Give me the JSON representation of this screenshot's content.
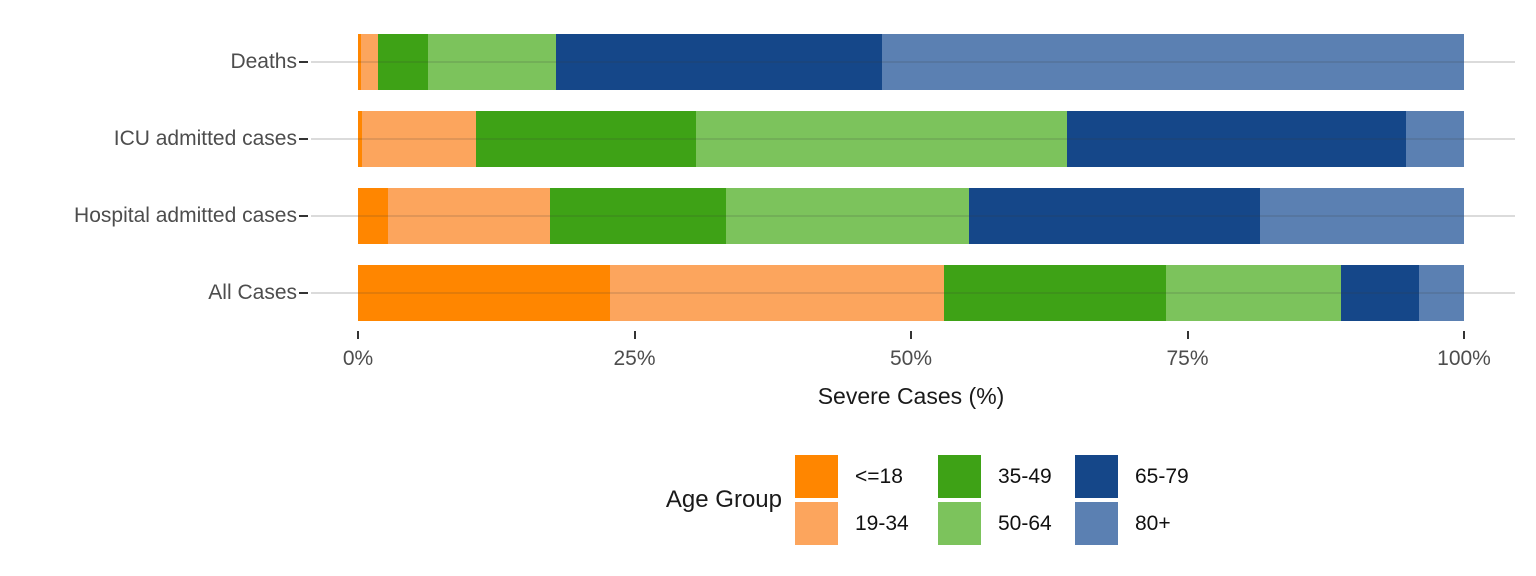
{
  "chart_data": {
    "type": "bar",
    "variant": "horizontal-stacked-percent",
    "title": "",
    "xlabel": "Severe Cases (%)",
    "ylabel": "",
    "xlim": [
      0,
      100
    ],
    "xticks": [
      0,
      25,
      50,
      75,
      100
    ],
    "xtick_suffix": "%",
    "grid": "horizontal-only",
    "legend_title": "Age Group",
    "legend_position": "bottom",
    "categories": [
      "Deaths",
      "ICU admitted cases",
      "Hospital admitted cases",
      "All Cases"
    ],
    "series": [
      {
        "name": "<=18",
        "color": "#FF8600",
        "values": [
          0.3,
          0.4,
          2.7,
          22.8
        ]
      },
      {
        "name": "19-34",
        "color": "#FCA55D",
        "values": [
          1.5,
          10.3,
          14.7,
          30.2
        ]
      },
      {
        "name": "35-49",
        "color": "#3EA216",
        "values": [
          4.5,
          19.9,
          15.9,
          20.1
        ]
      },
      {
        "name": "50-64",
        "color": "#7CC35C",
        "values": [
          11.6,
          33.5,
          21.9,
          15.8
        ]
      },
      {
        "name": "65-79",
        "color": "#154789",
        "values": [
          29.5,
          30.7,
          26.4,
          7.0
        ]
      },
      {
        "name": "80+",
        "color": "#5B80B2",
        "values": [
          52.6,
          5.2,
          18.4,
          4.1
        ]
      }
    ]
  }
}
